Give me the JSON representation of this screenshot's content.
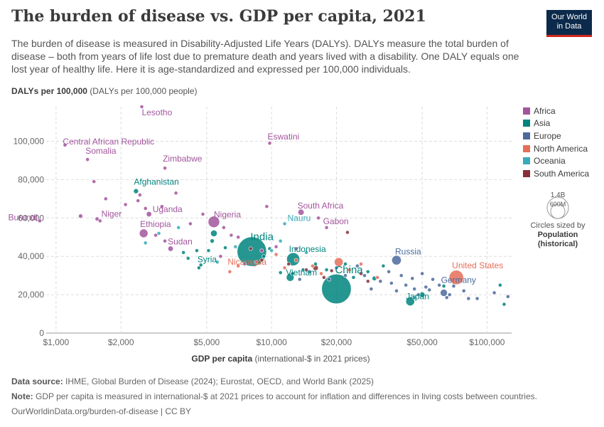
{
  "header": {
    "title": "The burden of disease vs. GDP per capita, 2021",
    "subtitle": "The burden of disease is measured in Disability-Adjusted Life Years (DALYs). DALYs measure the total burden of disease – both from years of life lost due to premature death and years lived with a disability. One DALY equals one lost year of healthy life. Here it is age-standardized and expressed per 100,000 individuals.",
    "logo_line1": "Our World",
    "logo_line2": "in Data"
  },
  "axis": {
    "y_title": "DALYs per 100,000",
    "y_unit": "(DALYs per 100,000 people)",
    "x_title": "GDP per capita",
    "x_unit": "(international-$ in 2021 prices)"
  },
  "legend": {
    "items": [
      {
        "name": "Africa",
        "color": "#a2559c"
      },
      {
        "name": "Asia",
        "color": "#00847e"
      },
      {
        "name": "Europe",
        "color": "#4c6a9c"
      },
      {
        "name": "North America",
        "color": "#e56e5a"
      },
      {
        "name": "Oceania",
        "color": "#38aaba"
      },
      {
        "name": "South America",
        "color": "#883039"
      }
    ],
    "size_big": "1.4B",
    "size_small": "600M",
    "size_note1": "Circles sized by",
    "size_note2": "Population",
    "size_note3": "(historical)"
  },
  "footer": {
    "source_label": "Data source:",
    "source_text": "IHME, Global Burden of Disease (2024); Eurostat, OECD, and World Bank (2025)",
    "note_label": "Note:",
    "note_text": "GDP per capita is measured in international-$ at 2021 prices to account for inflation and differences in living costs between countries.",
    "url": "OurWorldinData.org/burden-of-disease | CC BY"
  },
  "chart_data": {
    "type": "scatter",
    "title": "The burden of disease vs. GDP per capita, 2021",
    "xlabel": "GDP per capita",
    "ylabel": "DALYs per 100,000",
    "x_scale": "log",
    "xlim": [
      900,
      130000
    ],
    "ylim": [
      0,
      118000
    ],
    "x_ticks": [
      1000,
      2000,
      5000,
      10000,
      20000,
      50000,
      100000
    ],
    "x_tick_labels": [
      "$1,000",
      "$2,000",
      "$5,000",
      "$10,000",
      "$20,000",
      "$50,000",
      "$100,000"
    ],
    "y_ticks": [
      0,
      20000,
      40000,
      60000,
      80000,
      100000
    ],
    "y_tick_labels": [
      "0",
      "20,000",
      "40,000",
      "60,000",
      "80,000",
      "100,000"
    ],
    "grid": true,
    "legend_position": "right",
    "labeled_points": [
      {
        "label": "Lesotho",
        "region": "Africa",
        "x": 2500,
        "y": 118000,
        "pop_m": 2
      },
      {
        "label": "Central African Republic",
        "region": "Africa",
        "x": 1100,
        "y": 98000,
        "pop_m": 5
      },
      {
        "label": "Eswatini",
        "region": "Africa",
        "x": 9800,
        "y": 99000,
        "pop_m": 1
      },
      {
        "label": "Somalia",
        "region": "Africa",
        "x": 1400,
        "y": 90500,
        "pop_m": 17
      },
      {
        "label": "Zimbabwe",
        "region": "Africa",
        "x": 3200,
        "y": 86000,
        "pop_m": 16
      },
      {
        "label": "Afghanistan",
        "region": "Asia",
        "x": 2350,
        "y": 74000,
        "pop_m": 40
      },
      {
        "label": "Burundi",
        "region": "Africa",
        "x": 840,
        "y": 58500,
        "pop_m": 13
      },
      {
        "label": "Niger",
        "region": "Africa",
        "x": 1550,
        "y": 59500,
        "pop_m": 26
      },
      {
        "label": "Uganda",
        "region": "Africa",
        "x": 2700,
        "y": 62000,
        "pop_m": 47
      },
      {
        "label": "Nigeria",
        "region": "Africa",
        "x": 5400,
        "y": 58000,
        "pop_m": 213
      },
      {
        "label": "South Africa",
        "region": "Africa",
        "x": 13700,
        "y": 63000,
        "pop_m": 60
      },
      {
        "label": "Nauru",
        "region": "Oceania",
        "x": 11500,
        "y": 57000,
        "pop_m": 0.1
      },
      {
        "label": "Gabon",
        "region": "Africa",
        "x": 18000,
        "y": 55000,
        "pop_m": 2
      },
      {
        "label": "Ethiopia",
        "region": "Africa",
        "x": 2550,
        "y": 52000,
        "pop_m": 120
      },
      {
        "label": "Sudan",
        "region": "Africa",
        "x": 3400,
        "y": 44000,
        "pop_m": 46
      },
      {
        "label": "India",
        "region": "Asia",
        "x": 8100,
        "y": 42500,
        "pop_m": 1410
      },
      {
        "label": "Indonesia",
        "region": "Asia",
        "x": 12600,
        "y": 38500,
        "pop_m": 275
      },
      {
        "label": "Syria",
        "region": "Asia",
        "x": 4700,
        "y": 35500,
        "pop_m": 21
      },
      {
        "label": "Nicaragua",
        "region": "North America",
        "x": 6400,
        "y": 32000,
        "pop_m": 7
      },
      {
        "label": "Vietnam",
        "region": "Asia",
        "x": 12200,
        "y": 29000,
        "pop_m": 98
      },
      {
        "label": "China",
        "region": "Asia",
        "x": 20000,
        "y": 23000,
        "pop_m": 1425
      },
      {
        "label": "Russia",
        "region": "Europe",
        "x": 38000,
        "y": 38000,
        "pop_m": 145
      },
      {
        "label": "United States",
        "region": "North America",
        "x": 72000,
        "y": 29000,
        "pop_m": 337
      },
      {
        "label": "Germany",
        "region": "Europe",
        "x": 63000,
        "y": 21000,
        "pop_m": 83
      },
      {
        "label": "Japan",
        "region": "Asia",
        "x": 44000,
        "y": 16500,
        "pop_m": 125
      }
    ],
    "other_points": [
      {
        "region": "Africa",
        "x": 1500,
        "y": 79000,
        "pop_m": 3
      },
      {
        "region": "Africa",
        "x": 1700,
        "y": 70000,
        "pop_m": 3
      },
      {
        "region": "Africa",
        "x": 2400,
        "y": 69000,
        "pop_m": 2
      },
      {
        "region": "Africa",
        "x": 2450,
        "y": 72000,
        "pop_m": 2
      },
      {
        "region": "Africa",
        "x": 3600,
        "y": 73000,
        "pop_m": 2
      },
      {
        "region": "Africa",
        "x": 2100,
        "y": 67000,
        "pop_m": 2
      },
      {
        "region": "Africa",
        "x": 2600,
        "y": 65000,
        "pop_m": 2
      },
      {
        "region": "Africa",
        "x": 3100,
        "y": 66000,
        "pop_m": 2
      },
      {
        "region": "Africa",
        "x": 1300,
        "y": 61000,
        "pop_m": 30
      },
      {
        "region": "Africa",
        "x": 1600,
        "y": 58500,
        "pop_m": 5
      },
      {
        "region": "Africa",
        "x": 4200,
        "y": 57000,
        "pop_m": 3
      },
      {
        "region": "Africa",
        "x": 4800,
        "y": 62000,
        "pop_m": 3
      },
      {
        "region": "Africa",
        "x": 6000,
        "y": 55000,
        "pop_m": 3
      },
      {
        "region": "Africa",
        "x": 9500,
        "y": 66000,
        "pop_m": 2
      },
      {
        "region": "Africa",
        "x": 16500,
        "y": 60000,
        "pop_m": 2
      },
      {
        "region": "Africa",
        "x": 2900,
        "y": 51000,
        "pop_m": 3
      },
      {
        "region": "Africa",
        "x": 3200,
        "y": 48000,
        "pop_m": 3
      },
      {
        "region": "Africa",
        "x": 6500,
        "y": 51000,
        "pop_m": 3
      },
      {
        "region": "Africa",
        "x": 7000,
        "y": 50000,
        "pop_m": 3
      },
      {
        "region": "Africa",
        "x": 5800,
        "y": 40000,
        "pop_m": 3
      },
      {
        "region": "Africa",
        "x": 9000,
        "y": 43000,
        "pop_m": 3
      },
      {
        "region": "Africa",
        "x": 10500,
        "y": 45000,
        "pop_m": 3
      },
      {
        "region": "Africa",
        "x": 13000,
        "y": 44000,
        "pop_m": 3
      },
      {
        "region": "Africa",
        "x": 7500,
        "y": 36000,
        "pop_m": 3
      },
      {
        "region": "Asia",
        "x": 5400,
        "y": 52000,
        "pop_m": 70
      },
      {
        "region": "Asia",
        "x": 5300,
        "y": 48000,
        "pop_m": 30
      },
      {
        "region": "Asia",
        "x": 5100,
        "y": 43000,
        "pop_m": 10
      },
      {
        "region": "Asia",
        "x": 4500,
        "y": 43000,
        "pop_m": 8
      },
      {
        "region": "Asia",
        "x": 6100,
        "y": 44500,
        "pop_m": 10
      },
      {
        "region": "Asia",
        "x": 4100,
        "y": 39000,
        "pop_m": 5
      },
      {
        "region": "Asia",
        "x": 3900,
        "y": 42000,
        "pop_m": 5
      },
      {
        "region": "Asia",
        "x": 4600,
        "y": 34000,
        "pop_m": 5
      },
      {
        "region": "Asia",
        "x": 9200,
        "y": 40000,
        "pop_m": 10
      },
      {
        "region": "Asia",
        "x": 9800,
        "y": 44000,
        "pop_m": 5
      },
      {
        "region": "Asia",
        "x": 11000,
        "y": 31500,
        "pop_m": 5
      },
      {
        "region": "Asia",
        "x": 12500,
        "y": 31000,
        "pop_m": 5
      },
      {
        "region": "Asia",
        "x": 14000,
        "y": 33000,
        "pop_m": 15
      },
      {
        "region": "Asia",
        "x": 16000,
        "y": 36000,
        "pop_m": 5
      },
      {
        "region": "Asia",
        "x": 18000,
        "y": 33000,
        "pop_m": 5
      },
      {
        "region": "Asia",
        "x": 22000,
        "y": 36000,
        "pop_m": 5
      },
      {
        "region": "Asia",
        "x": 28000,
        "y": 32000,
        "pop_m": 5
      },
      {
        "region": "Asia",
        "x": 30000,
        "y": 28500,
        "pop_m": 35
      },
      {
        "region": "Asia",
        "x": 24000,
        "y": 29000,
        "pop_m": 5
      },
      {
        "region": "Asia",
        "x": 33000,
        "y": 35000,
        "pop_m": 5
      },
      {
        "region": "Asia",
        "x": 50000,
        "y": 20000,
        "pop_m": 50
      },
      {
        "region": "Asia",
        "x": 63000,
        "y": 24500,
        "pop_m": 5
      },
      {
        "region": "Asia",
        "x": 115000,
        "y": 25000,
        "pop_m": 3
      },
      {
        "region": "Asia",
        "x": 120000,
        "y": 15000,
        "pop_m": 3
      },
      {
        "region": "Oceania",
        "x": 2600,
        "y": 47000,
        "pop_m": 3
      },
      {
        "region": "Oceania",
        "x": 3000,
        "y": 52000,
        "pop_m": 3
      },
      {
        "region": "Oceania",
        "x": 3700,
        "y": 55000,
        "pop_m": 2
      },
      {
        "region": "Oceania",
        "x": 5600,
        "y": 37000,
        "pop_m": 2
      },
      {
        "region": "Oceania",
        "x": 6800,
        "y": 45000,
        "pop_m": 2
      },
      {
        "region": "Oceania",
        "x": 10000,
        "y": 43000,
        "pop_m": 2
      },
      {
        "region": "Oceania",
        "x": 11000,
        "y": 48000,
        "pop_m": 2
      },
      {
        "region": "Oceania",
        "x": 14500,
        "y": 42000,
        "pop_m": 2
      },
      {
        "region": "Oceania",
        "x": 46000,
        "y": 18500,
        "pop_m": 26
      },
      {
        "region": "Europe",
        "x": 13500,
        "y": 28000,
        "pop_m": 3
      },
      {
        "region": "Europe",
        "x": 15000,
        "y": 32000,
        "pop_m": 3
      },
      {
        "region": "Europe",
        "x": 18500,
        "y": 28000,
        "pop_m": 3
      },
      {
        "region": "Europe",
        "x": 20000,
        "y": 34000,
        "pop_m": 3
      },
      {
        "region": "Europe",
        "x": 22000,
        "y": 30000,
        "pop_m": 3
      },
      {
        "region": "Europe",
        "x": 25000,
        "y": 35000,
        "pop_m": 3
      },
      {
        "region": "Europe",
        "x": 27000,
        "y": 30000,
        "pop_m": 3
      },
      {
        "region": "Europe",
        "x": 29000,
        "y": 23000,
        "pop_m": 3
      },
      {
        "region": "Europe",
        "x": 32000,
        "y": 27000,
        "pop_m": 3
      },
      {
        "region": "Europe",
        "x": 35000,
        "y": 32000,
        "pop_m": 3
      },
      {
        "region": "Europe",
        "x": 36000,
        "y": 26000,
        "pop_m": 3
      },
      {
        "region": "Europe",
        "x": 38000,
        "y": 22000,
        "pop_m": 3
      },
      {
        "region": "Europe",
        "x": 40000,
        "y": 30000,
        "pop_m": 3
      },
      {
        "region": "Europe",
        "x": 42000,
        "y": 25000,
        "pop_m": 3
      },
      {
        "region": "Europe",
        "x": 45000,
        "y": 28500,
        "pop_m": 3
      },
      {
        "region": "Europe",
        "x": 46000,
        "y": 23000,
        "pop_m": 3
      },
      {
        "region": "Europe",
        "x": 48000,
        "y": 20000,
        "pop_m": 3
      },
      {
        "region": "Europe",
        "x": 50000,
        "y": 31000,
        "pop_m": 3
      },
      {
        "region": "Europe",
        "x": 52000,
        "y": 24000,
        "pop_m": 10
      },
      {
        "region": "Europe",
        "x": 54000,
        "y": 22500,
        "pop_m": 10
      },
      {
        "region": "Europe",
        "x": 56000,
        "y": 28000,
        "pop_m": 3
      },
      {
        "region": "Europe",
        "x": 60000,
        "y": 25000,
        "pop_m": 3
      },
      {
        "region": "Europe",
        "x": 65000,
        "y": 18500,
        "pop_m": 3
      },
      {
        "region": "Europe",
        "x": 67000,
        "y": 20000,
        "pop_m": 3
      },
      {
        "region": "Europe",
        "x": 70000,
        "y": 24500,
        "pop_m": 3
      },
      {
        "region": "Europe",
        "x": 78000,
        "y": 22000,
        "pop_m": 3
      },
      {
        "region": "Europe",
        "x": 82000,
        "y": 18000,
        "pop_m": 3
      },
      {
        "region": "Europe",
        "x": 90000,
        "y": 18000,
        "pop_m": 3
      },
      {
        "region": "Europe",
        "x": 108000,
        "y": 21000,
        "pop_m": 3
      },
      {
        "region": "Europe",
        "x": 125000,
        "y": 19000,
        "pop_m": 3
      },
      {
        "region": "North America",
        "x": 7000,
        "y": 35000,
        "pop_m": 3
      },
      {
        "region": "North America",
        "x": 8500,
        "y": 37000,
        "pop_m": 3
      },
      {
        "region": "North America",
        "x": 10500,
        "y": 41000,
        "pop_m": 3
      },
      {
        "region": "North America",
        "x": 11500,
        "y": 34000,
        "pop_m": 3
      },
      {
        "region": "North America",
        "x": 13000,
        "y": 38000,
        "pop_m": 3
      },
      {
        "region": "North America",
        "x": 15500,
        "y": 35000,
        "pop_m": 3
      },
      {
        "region": "North America",
        "x": 17000,
        "y": 31000,
        "pop_m": 3
      },
      {
        "region": "North America",
        "x": 20500,
        "y": 37000,
        "pop_m": 126
      },
      {
        "region": "North America",
        "x": 23000,
        "y": 33000,
        "pop_m": 3
      },
      {
        "region": "North America",
        "x": 26000,
        "y": 36000,
        "pop_m": 3
      },
      {
        "region": "North America",
        "x": 31000,
        "y": 29000,
        "pop_m": 3
      },
      {
        "region": "South America",
        "x": 8000,
        "y": 44000,
        "pop_m": 3
      },
      {
        "region": "South America",
        "x": 9000,
        "y": 38000,
        "pop_m": 3
      },
      {
        "region": "South America",
        "x": 12000,
        "y": 36000,
        "pop_m": 3
      },
      {
        "region": "South America",
        "x": 14500,
        "y": 33000,
        "pop_m": 3
      },
      {
        "region": "South America",
        "x": 16000,
        "y": 34000,
        "pop_m": 50
      },
      {
        "region": "South America",
        "x": 17500,
        "y": 29000,
        "pop_m": 3
      },
      {
        "region": "South America",
        "x": 19000,
        "y": 32500,
        "pop_m": 3
      },
      {
        "region": "South America",
        "x": 22500,
        "y": 52500,
        "pop_m": 3
      },
      {
        "region": "South America",
        "x": 26000,
        "y": 31000,
        "pop_m": 3
      },
      {
        "region": "South America",
        "x": 28000,
        "y": 27000,
        "pop_m": 3
      }
    ]
  }
}
